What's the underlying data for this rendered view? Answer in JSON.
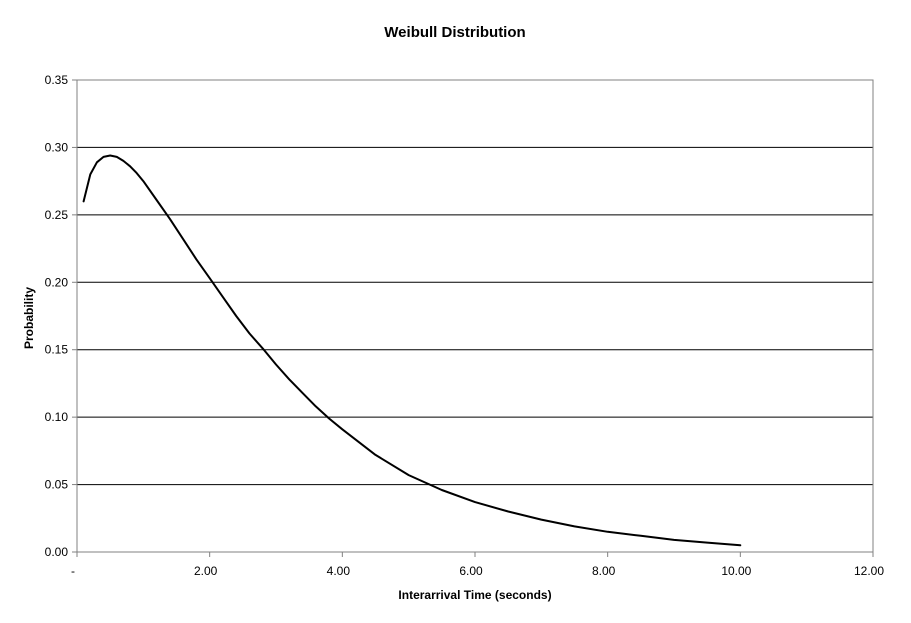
{
  "chart_data": {
    "type": "line",
    "title": "Weibull Distribution",
    "xlabel": "Interarrival Time (seconds)",
    "ylabel": "Probability",
    "xlim": [
      0,
      12
    ],
    "ylim": [
      0,
      0.35
    ],
    "x_ticks": [
      0,
      2,
      4,
      6,
      8,
      10,
      12
    ],
    "x_tick_labels": [
      "-",
      "2.00",
      "4.00",
      "6.00",
      "8.00",
      "10.00",
      "12.00"
    ],
    "y_ticks": [
      0,
      0.05,
      0.1,
      0.15,
      0.2,
      0.25,
      0.3,
      0.35
    ],
    "y_tick_labels": [
      "0.00",
      "0.05",
      "0.10",
      "0.15",
      "0.20",
      "0.25",
      "0.30",
      "0.35"
    ],
    "grid": "horizontal",
    "legend": "none",
    "series": [
      {
        "color": "#000000",
        "x": [
          0.1,
          0.2,
          0.3,
          0.4,
          0.5,
          0.6,
          0.7,
          0.8,
          0.9,
          1.0,
          1.2,
          1.4,
          1.6,
          1.8,
          2.0,
          2.2,
          2.4,
          2.6,
          2.8,
          3.0,
          3.2,
          3.4,
          3.6,
          3.8,
          4.0,
          4.5,
          5.0,
          5.5,
          6.0,
          6.5,
          7.0,
          7.5,
          8.0,
          8.5,
          9.0,
          9.5,
          10.0
        ],
        "values": [
          0.26,
          0.28,
          0.289,
          0.293,
          0.294,
          0.293,
          0.29,
          0.286,
          0.281,
          0.275,
          0.261,
          0.247,
          0.232,
          0.217,
          0.203,
          0.189,
          0.175,
          0.162,
          0.151,
          0.139,
          0.128,
          0.118,
          0.108,
          0.099,
          0.091,
          0.072,
          0.057,
          0.046,
          0.037,
          0.03,
          0.024,
          0.019,
          0.015,
          0.012,
          0.009,
          0.007,
          0.005
        ]
      }
    ]
  }
}
